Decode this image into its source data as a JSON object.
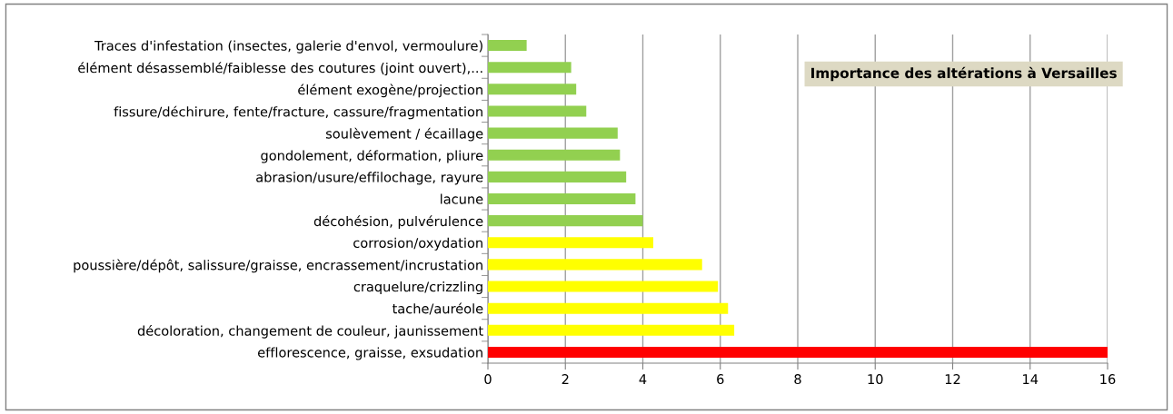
{
  "chart_data": {
    "type": "bar",
    "orientation": "horizontal",
    "title": "Importance des altérations à Versailles",
    "categories": [
      "Traces d'infestation (insectes, galerie d'envol, vermoulure)",
      "élément désassemblé/faiblesse des coutures (joint ouvert),...",
      "élément exogène/projection",
      "fissure/déchirure, fente/fracture, cassure/fragmentation",
      "soulèvement / écaillage",
      "gondolement, déformation, pliure",
      "abrasion/usure/effilochage, rayure",
      "lacune",
      "décohésion, pulvérulence",
      "corrosion/oxydation",
      "poussière/dépôt, salissure/graisse, encrassement/incrustation",
      "craquelure/crizzling",
      "tache/auréole",
      "décoloration, changement de couleur, jaunissement",
      "efflorescence, graisse, exsudation"
    ],
    "values": [
      1.0,
      2.15,
      2.28,
      2.54,
      3.35,
      3.41,
      3.57,
      3.81,
      4.0,
      4.27,
      5.53,
      5.94,
      6.2,
      6.36,
      16
    ],
    "colors": [
      "#92d050",
      "#92d050",
      "#92d050",
      "#92d050",
      "#92d050",
      "#92d050",
      "#92d050",
      "#92d050",
      "#92d050",
      "#ffff00",
      "#ffff00",
      "#ffff00",
      "#ffff00",
      "#ffff00",
      "#ff0000"
    ],
    "xlim": [
      0,
      16
    ],
    "xticks": [
      0,
      2,
      4,
      6,
      8,
      10,
      12,
      14,
      16
    ],
    "grid": "x"
  }
}
